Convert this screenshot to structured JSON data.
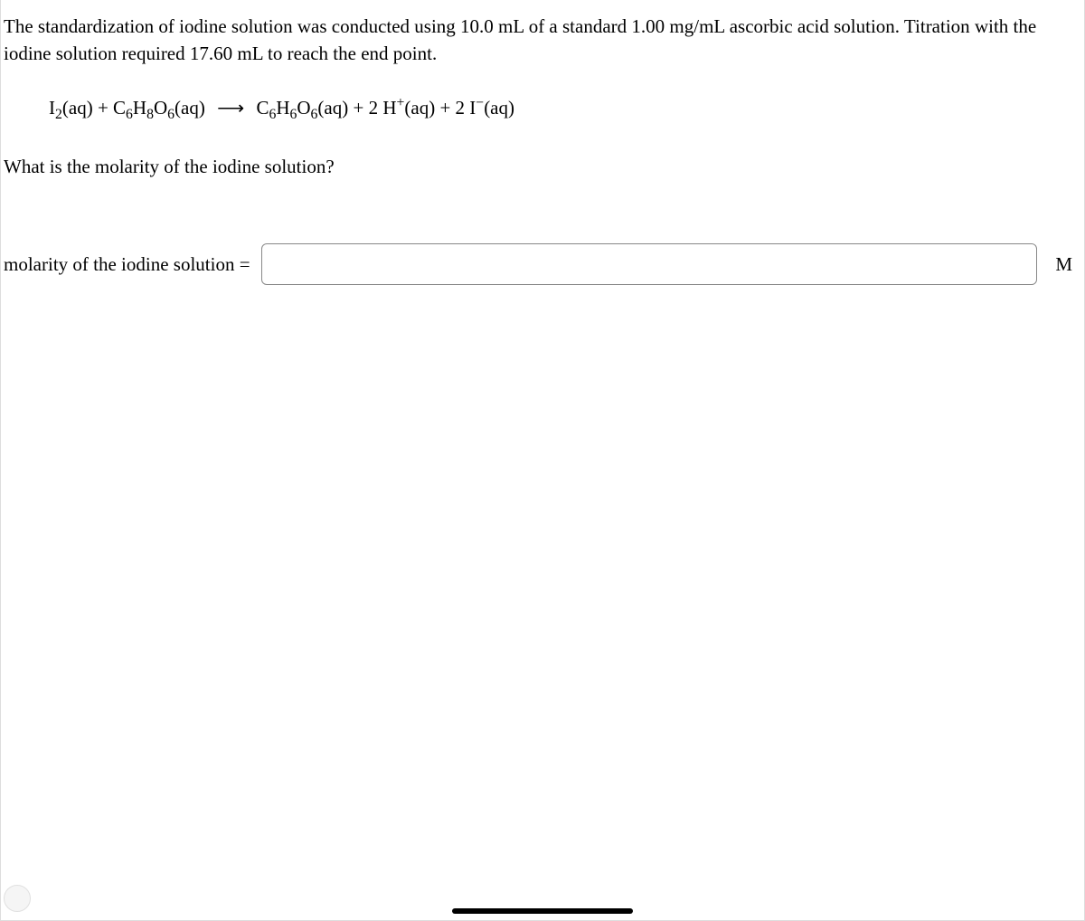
{
  "problem": {
    "line1": "The standardization of iodine solution was conducted using 10.0 mL of a standard 1.00 mg/mL ascorbic acid solution. Titration",
    "line2": "with the iodine solution required 17.60 mL to reach the end point."
  },
  "equation": {
    "reactant1_base": "I",
    "reactant1_sub": "2",
    "reactant1_state": "(aq)",
    "plus1": " + ",
    "reactant2_C": "C",
    "reactant2_C_sub": "6",
    "reactant2_H": "H",
    "reactant2_H_sub": "8",
    "reactant2_O": "O",
    "reactant2_O_sub": "6",
    "reactant2_state": "(aq)",
    "arrow": "⟶",
    "product1_C": "C",
    "product1_C_sub": "6",
    "product1_H": "H",
    "product1_H_sub": "6",
    "product1_O": "O",
    "product1_O_sub": "6",
    "product1_state": "(aq)",
    "plus2": " + ",
    "product2_coef": "2 ",
    "product2_H": "H",
    "product2_sup": "+",
    "product2_state": "(aq)",
    "plus3": " + ",
    "product3_coef": "2 ",
    "product3_I": "I",
    "product3_sup": "−",
    "product3_state": "(aq)"
  },
  "question": "What is the molarity of the iodine solution?",
  "answer": {
    "label": "molarity of the iodine solution =",
    "value": "",
    "unit": "M"
  },
  "styling": {
    "font_family": "Times New Roman",
    "font_size_pt": 16,
    "text_color": "#000000",
    "background_color": "#ffffff",
    "input_border_color": "#888888",
    "input_border_radius": 6,
    "handle_color": "#000000"
  }
}
